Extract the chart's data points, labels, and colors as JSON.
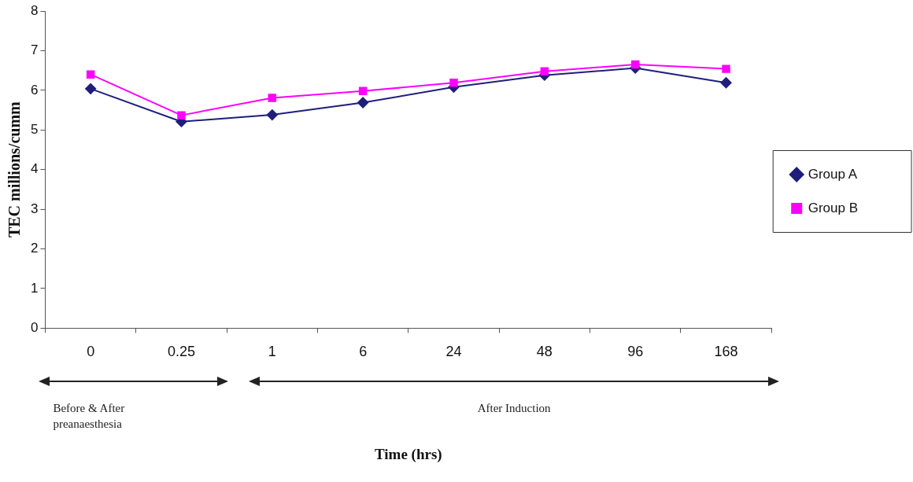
{
  "chart_data": {
    "type": "line",
    "ylabel": "TEC millions/cumm",
    "categories": [
      "0",
      "0.25",
      "1",
      "6",
      "24",
      "48",
      "96",
      "168"
    ],
    "series": [
      {
        "name": "Group A",
        "color": "#1f1f7a",
        "marker": "diamond",
        "values": [
          6.04,
          5.21,
          5.38,
          5.69,
          6.08,
          6.38,
          6.56,
          6.19
        ]
      },
      {
        "name": "Group B",
        "color": "#ff00ff",
        "marker": "square",
        "values": [
          6.4,
          5.37,
          5.81,
          5.98,
          6.19,
          6.48,
          6.65,
          6.54
        ]
      }
    ],
    "ylim": [
      0,
      8
    ],
    "yticks": [
      0,
      1,
      2,
      3,
      4,
      5,
      6,
      7,
      8
    ],
    "grid": false,
    "legend": "right",
    "annotations": [
      "Before & After preanaesthesia",
      "After Induction",
      "Time (hrs)"
    ]
  }
}
